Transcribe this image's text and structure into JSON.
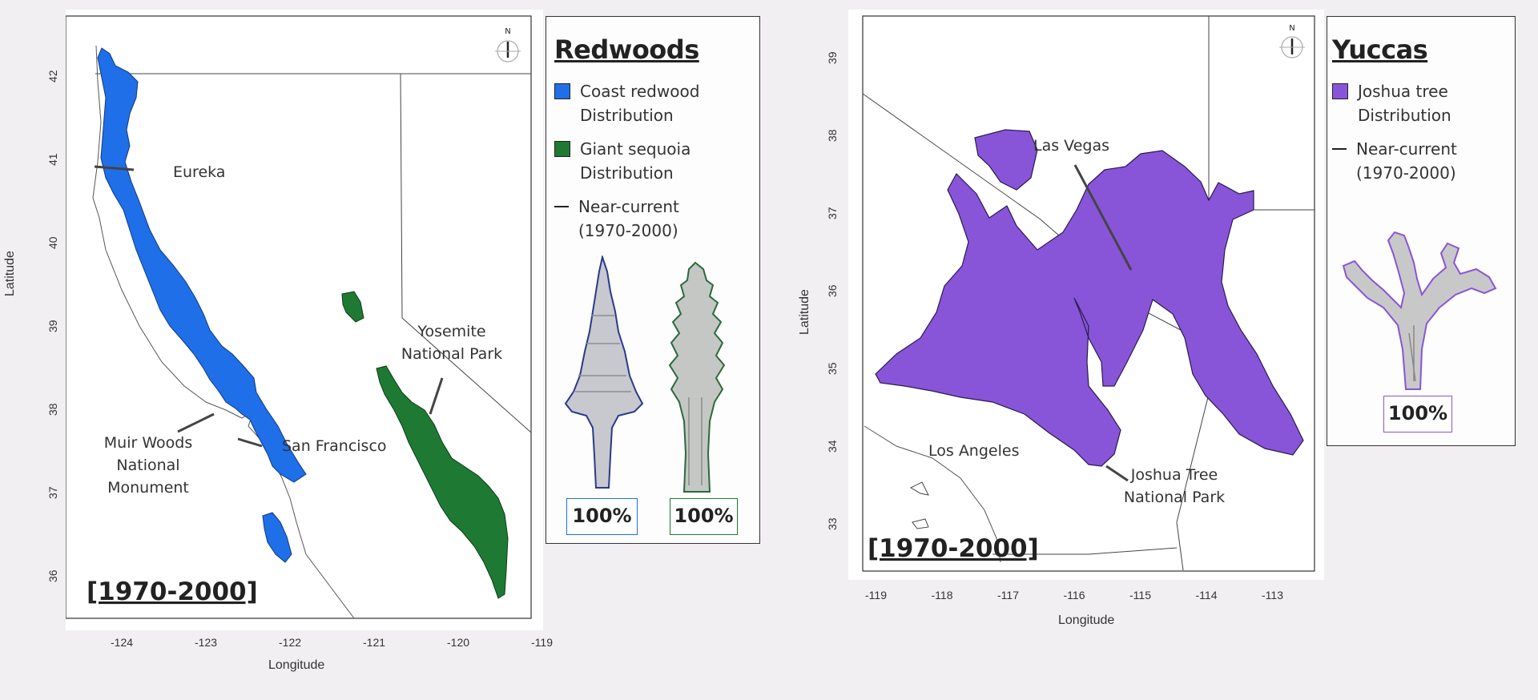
{
  "left_map": {
    "period": "[1970-2000]",
    "xlabel": "Longitude",
    "ylabel": "Latitude",
    "x_ticks": [
      "-124",
      "-123",
      "-122",
      "-121",
      "-120",
      "-119"
    ],
    "y_ticks": [
      "42",
      "41",
      "40",
      "39",
      "38",
      "37",
      "36"
    ],
    "labels": {
      "eureka": "Eureka",
      "muir_woods": "Muir Woods\nNational\nMonument",
      "san_francisco": "San Francisco",
      "yosemite": "Yosemite\nNational Park"
    },
    "north": "N",
    "colors": {
      "coast_redwood": "#1f6fe8",
      "giant_sequoia": "#1e7a32"
    }
  },
  "left_legend": {
    "title": "Redwoods",
    "items": [
      {
        "label": "Coast redwood\nDistribution",
        "color": "#1f6fe8"
      },
      {
        "label": "Giant sequoia\nDistribution",
        "color": "#1e7a32"
      },
      {
        "label": "Near-current\n(1970-2000)"
      }
    ],
    "pct_redwood": "100%",
    "pct_sequoia": "100%",
    "tree_icon_redwood": "redwood-tree-icon",
    "tree_icon_sequoia": "sequoia-tree-icon"
  },
  "right_map": {
    "period": "[1970-2000]",
    "xlabel": "Longitude",
    "ylabel": "Latitude",
    "x_ticks": [
      "-119",
      "-118",
      "-117",
      "-116",
      "-115",
      "-114",
      "-113"
    ],
    "y_ticks": [
      "39",
      "38",
      "37",
      "36",
      "35",
      "34",
      "33"
    ],
    "labels": {
      "las_vegas": "Las Vegas",
      "los_angeles": "Los Angeles",
      "joshua_tree": "Joshua Tree\nNational Park"
    },
    "north": "N",
    "colors": {
      "joshua_tree": "#8855d8"
    }
  },
  "right_legend": {
    "title": "Yuccas",
    "items": [
      {
        "label": "Joshua tree\nDistribution",
        "color": "#8855d8"
      },
      {
        "label": "Near-current\n(1970-2000)"
      }
    ],
    "pct_joshua": "100%",
    "tree_icon_joshua": "joshua-tree-icon"
  }
}
